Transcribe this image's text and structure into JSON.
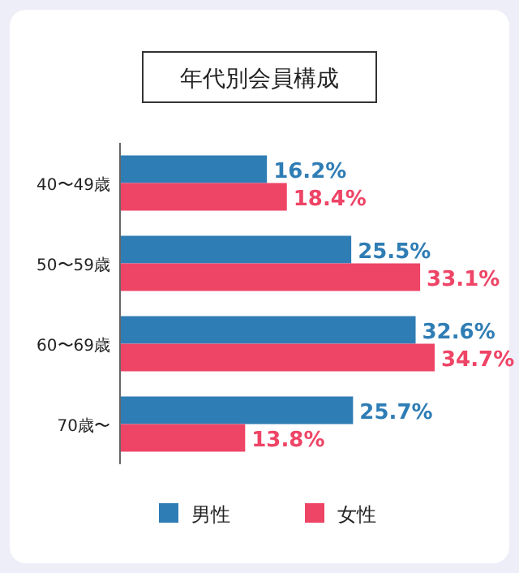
{
  "chart_data": {
    "type": "bar",
    "orientation": "horizontal",
    "title": "年代別会員構成",
    "categories": [
      "40〜49歳",
      "50〜59歳",
      "60〜69歳",
      "70歳〜"
    ],
    "series": [
      {
        "name": "男性",
        "color": "#2f7db5",
        "values": [
          16.2,
          25.5,
          32.6,
          25.7
        ],
        "value_labels": [
          "16.2%",
          "25.5%",
          "32.6%",
          "25.7%"
        ]
      },
      {
        "name": "女性",
        "color": "#ee4466",
        "values": [
          18.4,
          33.1,
          34.7,
          13.8
        ],
        "value_labels": [
          "18.4%",
          "33.1%",
          "34.7%",
          "13.8%"
        ]
      }
    ],
    "legend": "bottom"
  }
}
